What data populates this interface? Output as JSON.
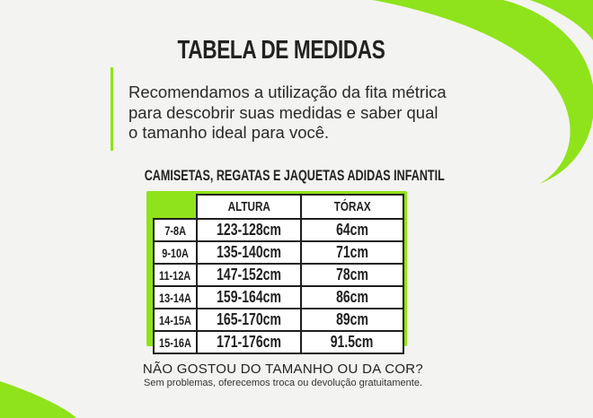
{
  "colors": {
    "accent": "#8fe31a",
    "background": "#f3f3f1",
    "text": "#1e1e1e"
  },
  "title": "TABELA DE MEDIDAS",
  "intro_lines": [
    "Recomendamos a utilização da fita métrica",
    "para descobrir suas medidas e saber qual",
    "o tamanho ideal para você."
  ],
  "table": {
    "caption": "CAMISETAS, REGATAS E JAQUETAS ADIDAS INFANTIL",
    "headers": [
      "",
      "ALTURA",
      "TÓRAX"
    ],
    "rows": [
      [
        "7-8A",
        "123-128cm",
        "64cm"
      ],
      [
        "9-10A",
        "135-140cm",
        "71cm"
      ],
      [
        "11-12A",
        "147-152cm",
        "78cm"
      ],
      [
        "13-14A",
        "159-164cm",
        "86cm"
      ],
      [
        "14-15A",
        "165-170cm",
        "89cm"
      ],
      [
        "15-16A",
        "171-176cm",
        "91.5cm"
      ]
    ]
  },
  "footer": {
    "question": "NÃO GOSTOU DO TAMANHO OU DA COR?",
    "note": "Sem problemas, oferecemos troca ou devolução gratuitamente."
  }
}
